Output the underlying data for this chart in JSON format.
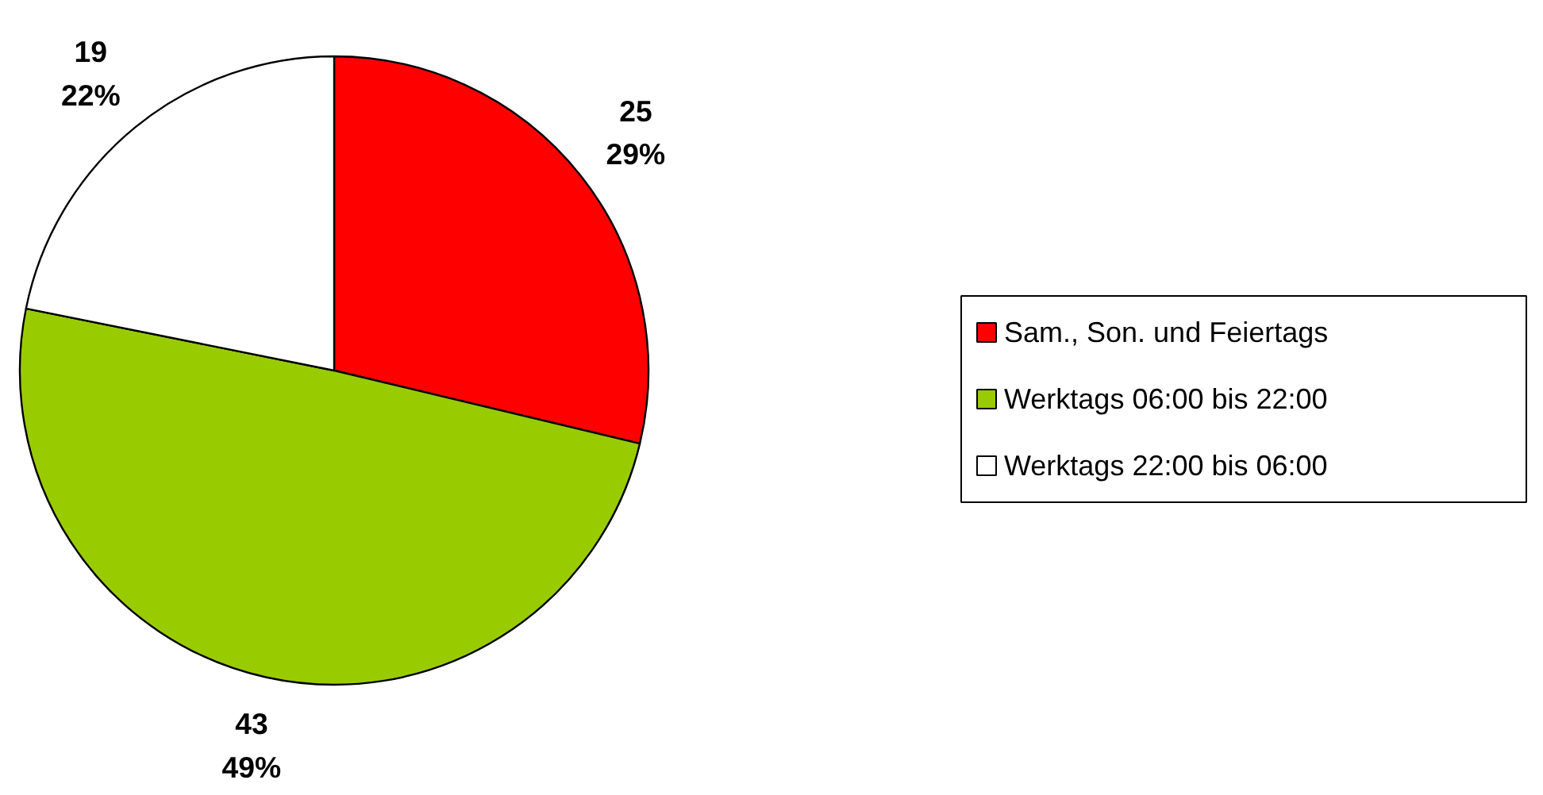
{
  "chart_data": {
    "type": "pie",
    "categories": [
      "Sam., Son. und Feiertags",
      "Werktags 06:00 bis 22:00",
      "Werktags 22:00 bis 06:00"
    ],
    "values": [
      25,
      43,
      19
    ],
    "colors": [
      "#ff0000",
      "#99cc00",
      "#ffffff"
    ],
    "value_labels": [
      "25\n29%",
      "43\n49%",
      "19\n22%"
    ],
    "legend": "right"
  }
}
